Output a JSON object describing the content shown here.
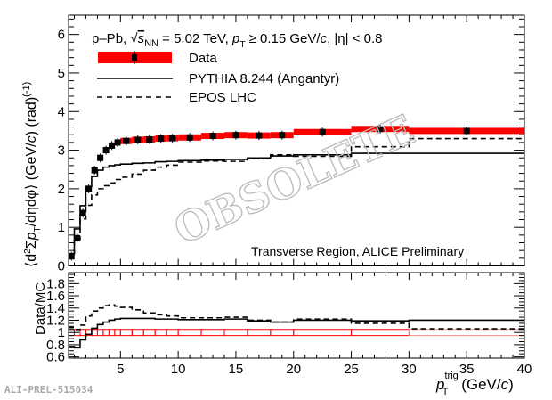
{
  "chart_data": [
    {
      "type": "line",
      "panel": "main",
      "title": "p–Pb, √s_NN = 5.02 TeV, p_T ≥ 0.15 GeV/c, |η| < 0.8",
      "title_parts": {
        "system": "p–Pb, ",
        "sqrt": "√",
        "s": "s",
        "nn": "NN",
        "eq": " = 5.02 TeV, ",
        "p": "p",
        "t": "T",
        "cut": " ≥ 0.15 GeV/",
        "c": "c",
        "eta": ", |η| < 0.8"
      },
      "annotation": "Transverse Region, ALICE Preliminary",
      "ylabel_parts": {
        "open": "⟨d",
        "sup2": "2",
        "sigma": "Σ",
        "p": "p",
        "t": "T",
        "rest": "/dηdφ⟩ (GeV/",
        "c": "c",
        "rad": ") (rad)",
        "exp": "(-1)"
      },
      "ylim": [
        0,
        6.5
      ],
      "yticks": [
        "0",
        "1",
        "2",
        "3",
        "4",
        "5",
        "6"
      ],
      "bin_edges": [
        0.5,
        1,
        1.5,
        2,
        2.5,
        3,
        3.5,
        4,
        4.5,
        5,
        6,
        7,
        8,
        9,
        10,
        12,
        14,
        16,
        18,
        20,
        25,
        30,
        40
      ],
      "legend": {
        "placement": "top-left",
        "entries": [
          "Data",
          "PYTHIA 8.244 (Angantyr)",
          "EPOS LHC"
        ]
      },
      "series": [
        {
          "name": "Data",
          "style": "markers+syst-band",
          "color": "#ff0000",
          "values": [
            0.25,
            0.72,
            1.37,
            2.0,
            2.48,
            2.8,
            3.0,
            3.12,
            3.2,
            3.24,
            3.27,
            3.28,
            3.3,
            3.31,
            3.33,
            3.37,
            3.39,
            3.38,
            3.39,
            3.47,
            3.55,
            3.5
          ],
          "syst": 0.08
        },
        {
          "name": "PYTHIA 8.244 (Angantyr)",
          "style": "solid-step",
          "values": [
            0.32,
            0.96,
            1.56,
            2.06,
            2.32,
            2.48,
            2.56,
            2.6,
            2.62,
            2.64,
            2.66,
            2.67,
            2.7,
            2.71,
            2.73,
            2.74,
            2.76,
            2.8,
            2.85,
            2.88,
            2.92,
            2.92
          ]
        },
        {
          "name": "EPOS LHC",
          "style": "dashed-step",
          "values": [
            0.23,
            0.69,
            1.22,
            1.57,
            1.84,
            2.0,
            2.08,
            2.15,
            2.24,
            2.3,
            2.38,
            2.48,
            2.56,
            2.61,
            2.69,
            2.72,
            2.71,
            2.79,
            2.88,
            2.84,
            3.09,
            3.3
          ]
        }
      ]
    },
    {
      "type": "line",
      "panel": "ratio",
      "ylabel": "Data/MC",
      "xlabel_parts": {
        "p": "p",
        "sup": "trig",
        "sub": "T",
        "unit": " (GeV/",
        "c": "c",
        "close": ")"
      },
      "xlim": [
        0.5,
        40
      ],
      "xticks": [
        "5",
        "10",
        "15",
        "20",
        "25",
        "30",
        "35",
        "40"
      ],
      "ylim": [
        0.58,
        1.98
      ],
      "yticks": [
        "0.6",
        "0.8",
        "1",
        "1.2",
        "1.4",
        "1.6",
        "1.8"
      ],
      "series": [
        {
          "name": "Data syst.",
          "style": "red-boxes",
          "values": 1.0,
          "syst": 0.05
        },
        {
          "name": "PYTHIA 8.244 (Angantyr)",
          "style": "solid-step",
          "values": [
            0.77,
            0.75,
            0.88,
            0.97,
            1.07,
            1.13,
            1.17,
            1.2,
            1.22,
            1.23,
            1.23,
            1.23,
            1.22,
            1.22,
            1.21,
            1.21,
            1.22,
            1.19,
            1.17,
            1.2,
            1.19,
            1.2
          ]
        },
        {
          "name": "EPOS LHC",
          "style": "dashed-step",
          "values": [
            1.08,
            1.05,
            1.12,
            1.27,
            1.35,
            1.4,
            1.44,
            1.45,
            1.43,
            1.41,
            1.37,
            1.32,
            1.29,
            1.27,
            1.24,
            1.24,
            1.25,
            1.2,
            1.17,
            1.22,
            1.15,
            1.06
          ]
        }
      ]
    }
  ],
  "watermark": "OBSOLETE",
  "figure_id": "ALI-PREL-515034"
}
